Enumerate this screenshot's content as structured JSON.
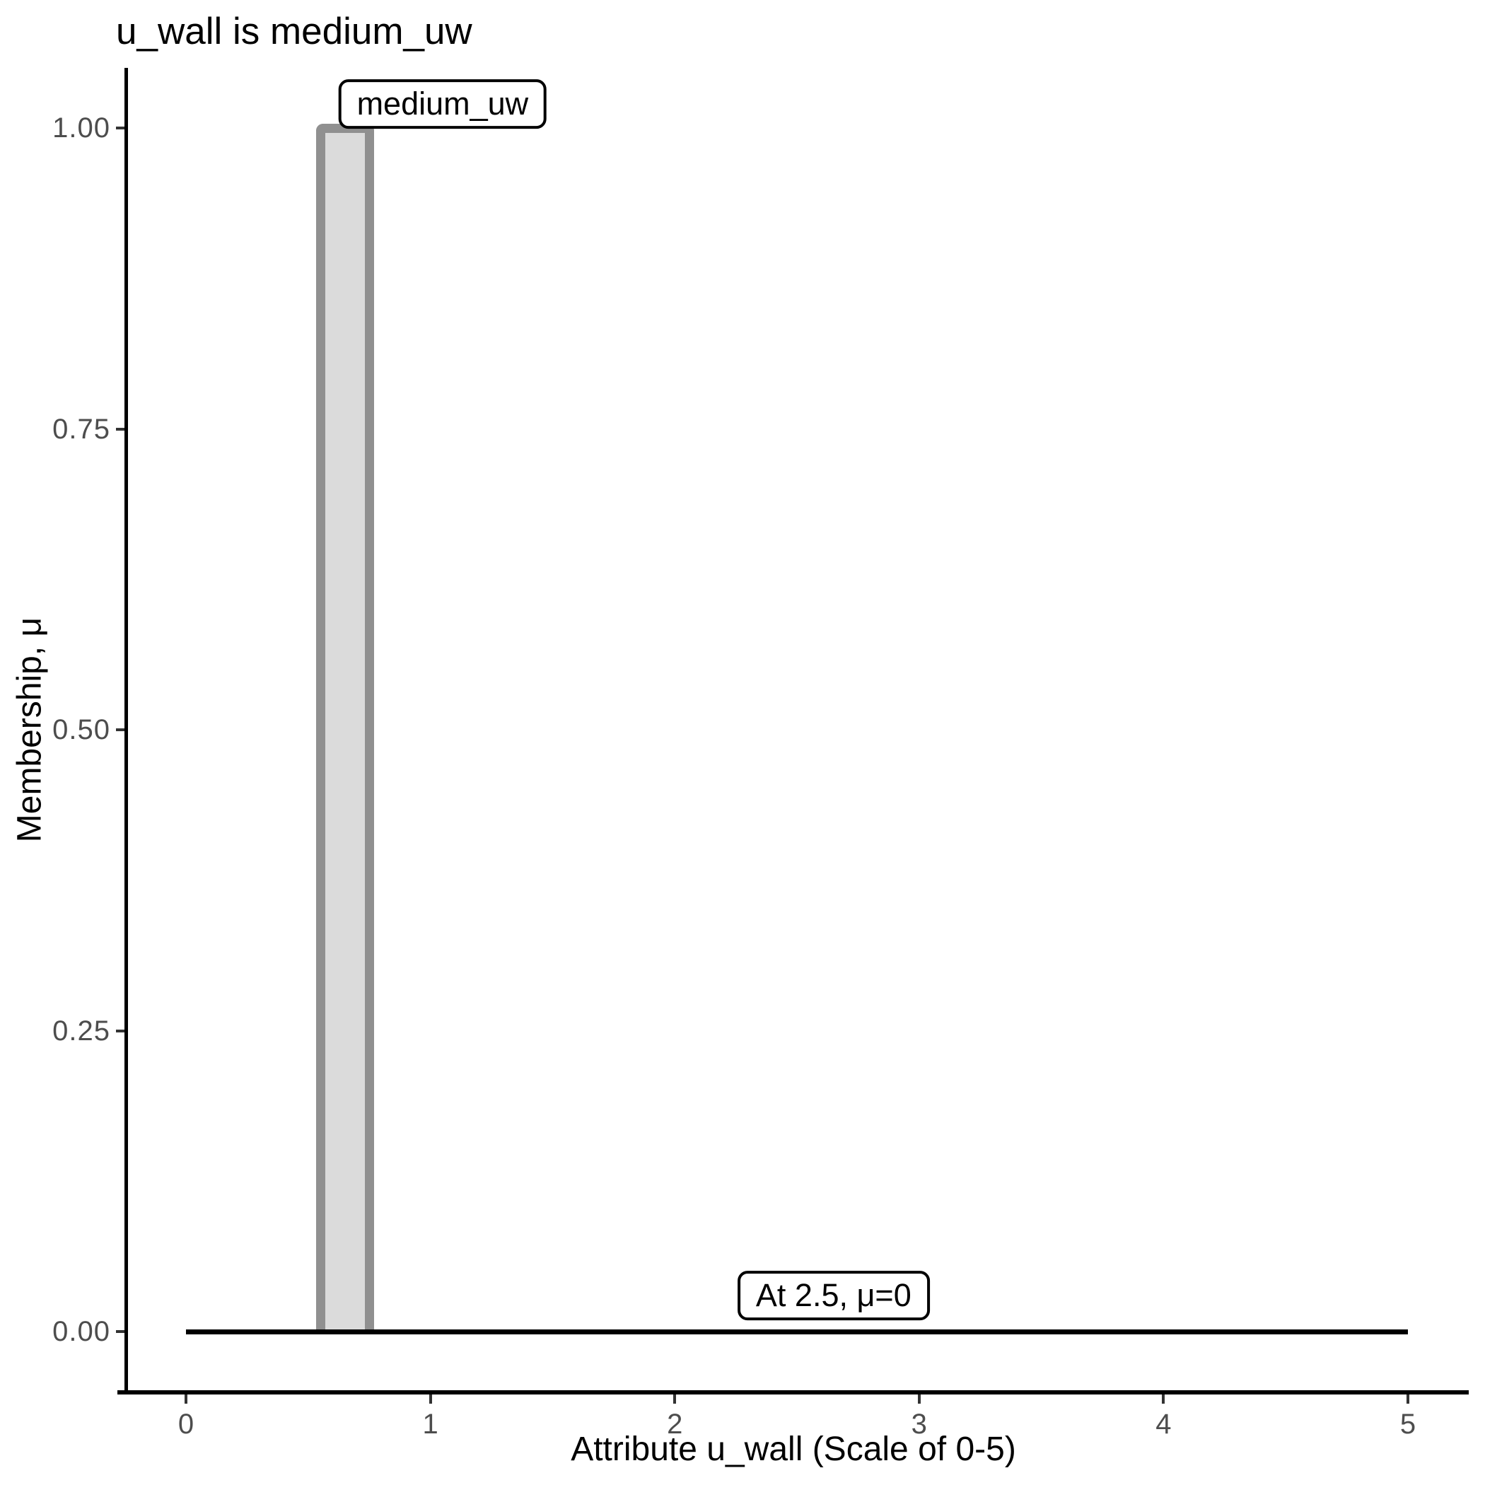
{
  "chart_data": {
    "type": "bar",
    "title": "u_wall is medium_uw",
    "xlabel": "Attribute u_wall (Scale of 0-5)",
    "ylabel": "Membership, μ",
    "xlim": [
      0,
      5
    ],
    "ylim": [
      0,
      1
    ],
    "grid": "off",
    "legend": "none",
    "x_ticks": [
      {
        "value": 0,
        "label": "0"
      },
      {
        "value": 1,
        "label": "1"
      },
      {
        "value": 2,
        "label": "2"
      },
      {
        "value": 3,
        "label": "3"
      },
      {
        "value": 4,
        "label": "4"
      },
      {
        "value": 5,
        "label": "5"
      }
    ],
    "y_ticks": [
      {
        "value": 1.0,
        "label": "1.00"
      },
      {
        "value": 0.75,
        "label": "0.75"
      },
      {
        "value": 0.5,
        "label": "0.50"
      },
      {
        "value": 0.25,
        "label": "0.25"
      },
      {
        "value": 0.0,
        "label": "0.00"
      }
    ],
    "series": [
      {
        "name": "medium_uw",
        "shape": "rectangle",
        "x_from": 0.55,
        "x_to": 0.75,
        "mu_top": 1.0,
        "mu_bottom": 0.0
      }
    ],
    "zero_line": {
      "mu": 0,
      "x_from": 0,
      "x_to": 5
    },
    "annotations": [
      {
        "text": "medium_uw",
        "x": 1.05,
        "mu": 1.02
      },
      {
        "text": "At 2.5, μ=0",
        "x": 2.65,
        "mu": 0.03
      }
    ],
    "colors": {
      "bar_fill": "#dbdbdb",
      "bar_stroke": "#909090",
      "axis": "#000000",
      "tick_label": "#4d4d4d",
      "zero_line": "#000000",
      "annotation_border": "#000000",
      "background": "#ffffff"
    }
  }
}
